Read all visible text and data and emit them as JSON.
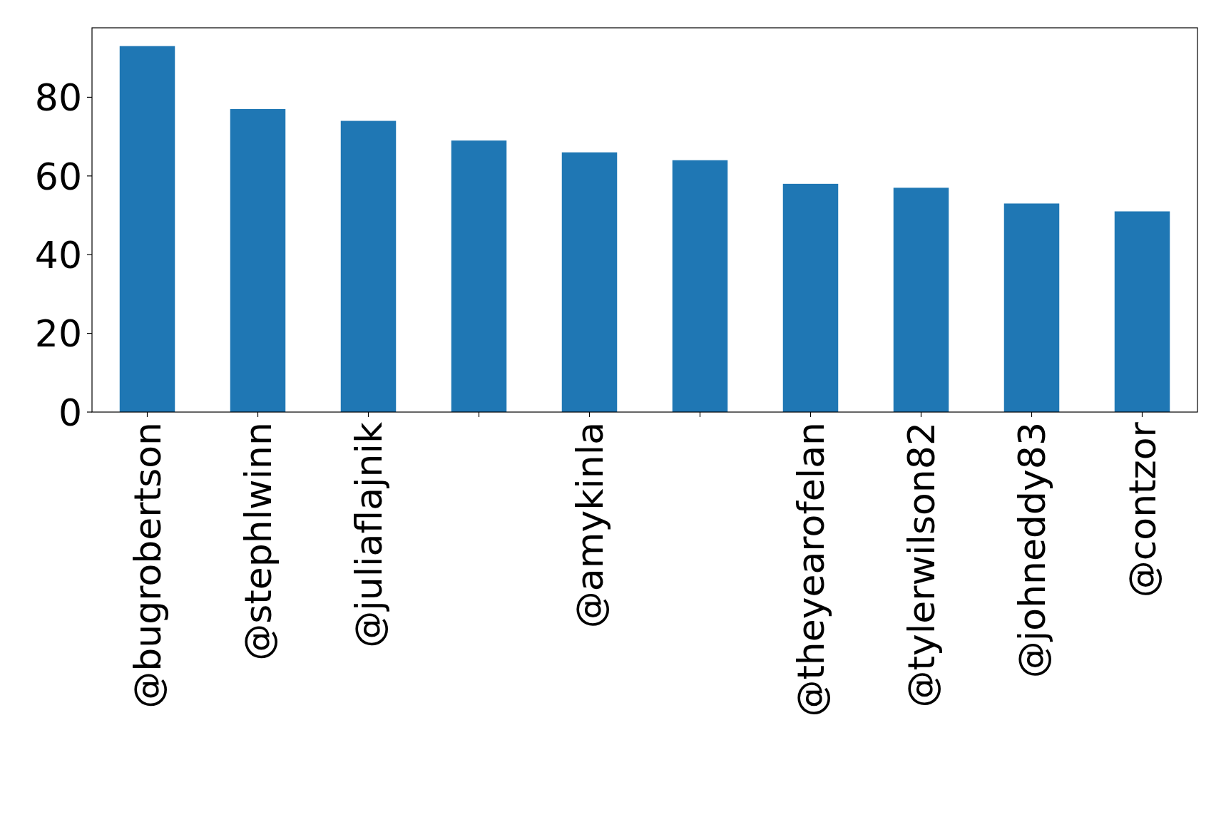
{
  "chart_data": {
    "type": "bar",
    "categories": [
      "@bugrobertson",
      "@stephlwinn",
      "@juliaflajnik",
      null,
      "@amykinla",
      null,
      "@theyearofelan",
      "@tylerwilson82",
      "@johneddy83",
      "@contzor"
    ],
    "values": [
      93,
      77,
      74,
      69,
      66,
      64,
      58,
      57,
      53,
      51
    ],
    "color": "#1f77b4",
    "ylim": [
      0,
      97.65
    ],
    "yticks": [
      0,
      20,
      40,
      60,
      80
    ],
    "grid": false
  }
}
